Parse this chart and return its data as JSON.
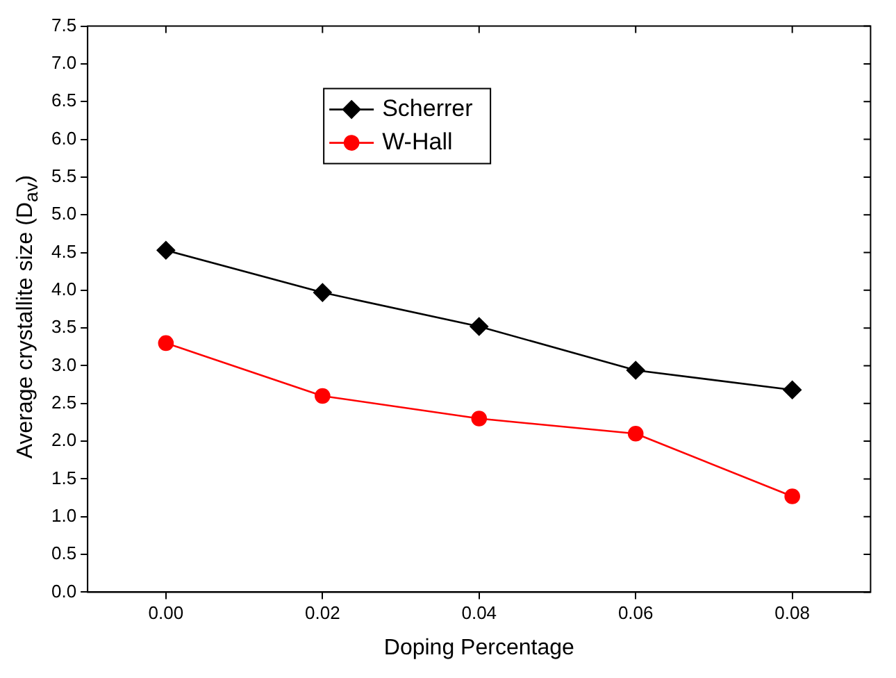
{
  "chart_data": {
    "type": "line",
    "xlabel": "Doping Percentage",
    "ylabel": "Average crystallite size (D$_{av}$)",
    "x": [
      0,
      0.02,
      0.04,
      0.06,
      0.08
    ],
    "series": [
      {
        "name": "Scherrer",
        "color": "#000000",
        "marker": "diamond",
        "values": [
          4.53,
          3.97,
          3.52,
          2.94,
          2.68
        ]
      },
      {
        "name": "W-Hall",
        "color": "#ff0000",
        "marker": "circle",
        "values": [
          3.3,
          2.6,
          2.3,
          2.1,
          1.27
        ]
      }
    ],
    "xlim": [
      -0.01,
      0.09
    ],
    "xticks": [
      {
        "value": 0,
        "label": "0.00"
      },
      {
        "value": 0.02,
        "label": "0.02"
      },
      {
        "value": 0.04,
        "label": "0.04"
      },
      {
        "value": 0.06,
        "label": "0.06"
      },
      {
        "value": 0.08,
        "label": "0.08"
      }
    ],
    "ylim": [
      0,
      7.5
    ],
    "yticks": [
      {
        "value": 0,
        "label": "0.0"
      },
      {
        "value": 0.5,
        "label": "0.5"
      },
      {
        "value": 1,
        "label": "1.0"
      },
      {
        "value": 1.5,
        "label": "1.5"
      },
      {
        "value": 2,
        "label": "2.0"
      },
      {
        "value": 2.5,
        "label": "2.5"
      },
      {
        "value": 3,
        "label": "3.0"
      },
      {
        "value": 3.5,
        "label": "3.5"
      },
      {
        "value": 4,
        "label": "4.0"
      },
      {
        "value": 4.5,
        "label": "4.5"
      },
      {
        "value": 5,
        "label": "5.0"
      },
      {
        "value": 5.5,
        "label": "5.5"
      },
      {
        "value": 6,
        "label": "6.0"
      },
      {
        "value": 6.5,
        "label": "6.5"
      },
      {
        "value": 7,
        "label": "7.0"
      },
      {
        "value": 7.5,
        "label": "7.5"
      }
    ],
    "grid": false,
    "legend": "top",
    "line_style": "solid"
  }
}
